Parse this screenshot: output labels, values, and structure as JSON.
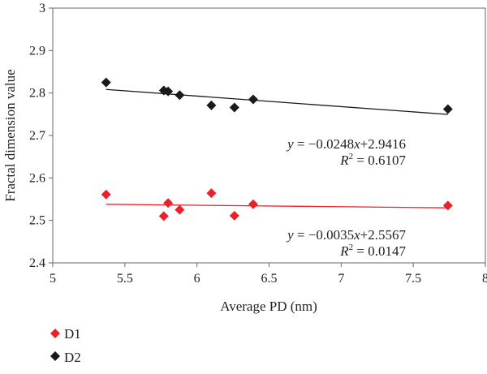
{
  "chart_data": {
    "type": "scatter",
    "xlabel": "Average PD (nm)",
    "ylabel": "Fractal dimension value",
    "xlim": [
      5,
      8
    ],
    "ylim": [
      2.4,
      3
    ],
    "xticks": [
      "5",
      "5.5",
      "6",
      "6.5",
      "7",
      "7.5",
      "8"
    ],
    "yticks": [
      "2.4",
      "2.5",
      "2.6",
      "2.7",
      "2.8",
      "2.9",
      "3"
    ],
    "grid": false,
    "legend_position": "bottom-left",
    "series": [
      {
        "name": "D1",
        "color": "#e8212a",
        "marker": "diamond",
        "x": [
          5.37,
          5.77,
          5.8,
          5.88,
          6.1,
          6.26,
          6.39,
          7.74
        ],
        "y": [
          2.561,
          2.51,
          2.541,
          2.525,
          2.564,
          2.511,
          2.538,
          2.535
        ],
        "trendline": {
          "slope": -0.0035,
          "intercept": 2.5567,
          "x_range": [
            5.37,
            7.74
          ],
          "equation": "y = −0.0035x+2.5567",
          "r2": "R2 = 0.0147"
        }
      },
      {
        "name": "D2",
        "color": "#1a1a1a",
        "marker": "diamond",
        "x": [
          5.37,
          5.77,
          5.8,
          5.88,
          6.1,
          6.26,
          6.39,
          7.74
        ],
        "y": [
          2.825,
          2.806,
          2.804,
          2.795,
          2.771,
          2.766,
          2.785,
          2.762
        ],
        "trendline": {
          "slope": -0.0248,
          "intercept": 2.9416,
          "x_range": [
            5.37,
            7.74
          ],
          "equation": "y = −0.0248x+2.9416",
          "r2": "R2 = 0.6107"
        }
      }
    ]
  }
}
